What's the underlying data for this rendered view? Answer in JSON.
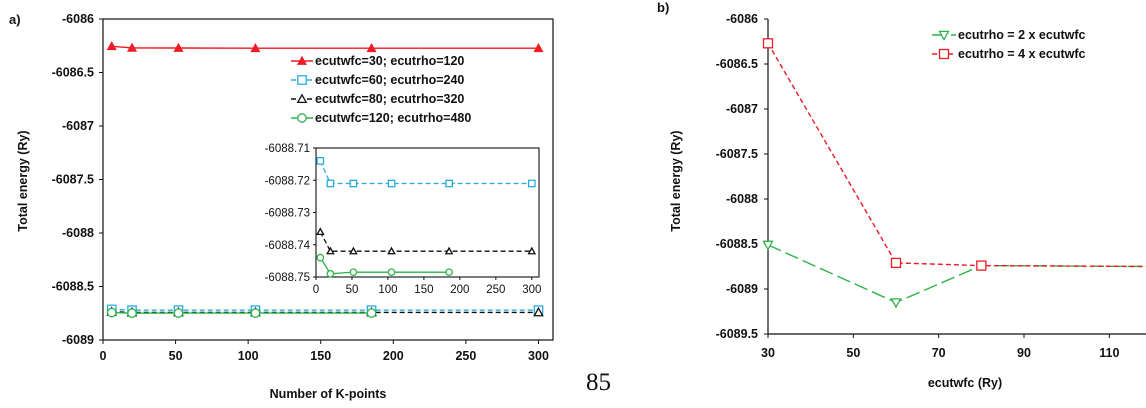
{
  "page_number": "85",
  "chart_data": [
    {
      "panel": "a)",
      "type": "line",
      "xlabel": "Number of K-points",
      "ylabel": "Total energy (Ry)",
      "xlim": [
        0,
        310
      ],
      "ylim": [
        -6089,
        -6086
      ],
      "xticks": [
        "0",
        "50",
        "100",
        "150",
        "200",
        "250",
        "300"
      ],
      "yticks": [
        "-6086",
        "-6086.5",
        "-6087",
        "-6087.5",
        "-6088",
        "-6088.5",
        "-6089"
      ],
      "legend_position": "right",
      "series": [
        {
          "name": "ecutwfc=30; ecutrho=120",
          "color": "#ee1c24",
          "marker": "filled-triangle",
          "dash": "solid",
          "points": [
            [
              6,
              -6086.255
            ],
            [
              20,
              -6086.27
            ],
            [
              52,
              -6086.271
            ],
            [
              105,
              -6086.273
            ],
            [
              185,
              -6086.273
            ],
            [
              300,
              -6086.273
            ]
          ]
        },
        {
          "name": "ecutwfc=60; ecutrho=240",
          "color": "#29abe2",
          "marker": "open-square",
          "dash": "dash",
          "points": [
            [
              6,
              -6088.714
            ],
            [
              20,
              -6088.721
            ],
            [
              52,
              -6088.721
            ],
            [
              105,
              -6088.721
            ],
            [
              185,
              -6088.721
            ],
            [
              300,
              -6088.721
            ]
          ]
        },
        {
          "name": "ecutwfc=80; ecutrho=320",
          "color": "#111111",
          "marker": "open-triangle",
          "dash": "dash",
          "points": [
            [
              6,
              -6088.736
            ],
            [
              20,
              -6088.742
            ],
            [
              52,
              -6088.742
            ],
            [
              105,
              -6088.742
            ],
            [
              185,
              -6088.742
            ],
            [
              300,
              -6088.742
            ]
          ]
        },
        {
          "name": "ecutwfc=120; ecutrho=480",
          "color": "#2fb44a",
          "marker": "open-circle",
          "dash": "solid",
          "points": [
            [
              6,
              -6088.744
            ],
            [
              20,
              -6088.749
            ],
            [
              52,
              -6088.7485
            ],
            [
              105,
              -6088.7485
            ],
            [
              185,
              -6088.7485
            ]
          ]
        }
      ],
      "inset": {
        "xlim": [
          0,
          310
        ],
        "ylim": [
          -6088.75,
          -6088.71
        ],
        "xticks": [
          "0",
          "50",
          "100",
          "150",
          "200",
          "250",
          "300"
        ],
        "yticks": [
          "-6088.71",
          "-6088.72",
          "-6088.73",
          "-6088.74",
          "-6088.75"
        ]
      }
    },
    {
      "panel": "b)",
      "type": "line",
      "xlabel": "ecutwfc (Ry)",
      "ylabel": "Total energy (Ry)",
      "xlim": [
        30,
        120
      ],
      "ylim": [
        -6089.5,
        -6086
      ],
      "xticks": [
        "30",
        "50",
        "70",
        "90",
        "110"
      ],
      "yticks": [
        "-6086",
        "-6086.5",
        "-6087",
        "-6087.5",
        "-6088",
        "-6088.5",
        "-6089",
        "-6089.5"
      ],
      "legend_position": "top-right",
      "series": [
        {
          "name": "ecutrho = 2 x ecutwfc",
          "color": "#2fb44a",
          "marker": "open-triangle-down",
          "dash": "longdash",
          "points": [
            [
              30,
              -6088.51
            ],
            [
              60,
              -6089.15
            ],
            [
              80,
              -6088.74
            ],
            [
              120,
              -6088.75
            ]
          ]
        },
        {
          "name": "ecutrho = 4 x ecutwfc",
          "color": "#ee1c24",
          "marker": "open-square",
          "dash": "dash",
          "points": [
            [
              30,
              -6086.27
            ],
            [
              60,
              -6088.71
            ],
            [
              80,
              -6088.74
            ],
            [
              120,
              -6088.75
            ]
          ]
        }
      ]
    }
  ]
}
